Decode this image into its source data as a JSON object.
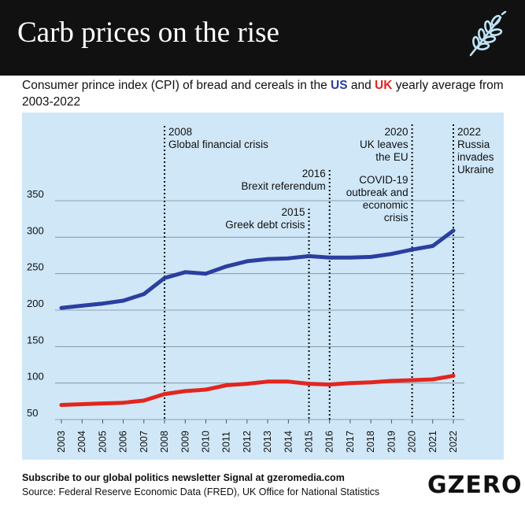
{
  "header": {
    "title": "Carb prices on the rise",
    "icon": "wheat-icon"
  },
  "subtitle": {
    "before": "Consumer prince index (CPI) of bread and cereals in the ",
    "us": "US",
    "mid": " and ",
    "uk": "UK",
    "after": " yearly average from 2003-2022"
  },
  "footer": {
    "subscribe": "Subscribe to our global politics newsletter Signal at gzeromedia.com",
    "source": "Source: Federal Reserve Economic Data (FRED), UK Office for National Statistics",
    "logo": "GZERO"
  },
  "colors": {
    "plot_bg": "#cfe7f7",
    "us": "#2b3fa0",
    "uk": "#e2261f",
    "grid": "#7a8a96",
    "annotation": "#111111"
  },
  "chart_data": {
    "type": "line",
    "x": [
      2003,
      2004,
      2005,
      2006,
      2007,
      2008,
      2009,
      2010,
      2011,
      2012,
      2013,
      2014,
      2015,
      2016,
      2017,
      2018,
      2019,
      2020,
      2021,
      2022
    ],
    "x_tick_labels": [
      "2003",
      "2004",
      "2005",
      "2006",
      "2007",
      "2008",
      "2009",
      "2010",
      "2011",
      "2012",
      "2013",
      "2014",
      "2015",
      "2016",
      "2017",
      "2018",
      "2019",
      "2020",
      "2021",
      "2022"
    ],
    "ylim": [
      50,
      350
    ],
    "y_ticks": [
      50,
      100,
      150,
      200,
      250,
      300,
      350
    ],
    "y_tick_labels": [
      "50",
      "100",
      "150",
      "200",
      "250",
      "300",
      "350"
    ],
    "grid": "horizontal",
    "series": [
      {
        "key": "us",
        "values": [
          203,
          206,
          209,
          213,
          222,
          244,
          252,
          250,
          260,
          267,
          270,
          271,
          274,
          272,
          272,
          273,
          277,
          283,
          288,
          309
        ]
      },
      {
        "key": "uk",
        "values": [
          70,
          71,
          72,
          73,
          76,
          85,
          89,
          91,
          97,
          99,
          102,
          102,
          99,
          98,
          100,
          101,
          103,
          104,
          105,
          110
        ]
      }
    ],
    "annotations": [
      {
        "x": 2008,
        "lines": [
          "2008",
          "Global financial crisis"
        ],
        "align": "left"
      },
      {
        "x": 2015,
        "lines": [
          "2015",
          "Greek debt crisis"
        ],
        "align": "right"
      },
      {
        "x": 2016,
        "lines": [
          "2016",
          "Brexit referendum"
        ],
        "align": "right"
      },
      {
        "x": 2020,
        "lines": [
          "2020",
          "UK leaves",
          "the EU"
        ],
        "align": "right"
      },
      {
        "x": 2020,
        "lines": [
          "COVID-19",
          "outbreak and",
          "economic",
          "crisis"
        ],
        "align": "right",
        "offset": "lower"
      },
      {
        "x": 2022,
        "lines": [
          "2022",
          "Russia",
          "invades",
          "Ukraine"
        ],
        "align": "left"
      }
    ]
  }
}
